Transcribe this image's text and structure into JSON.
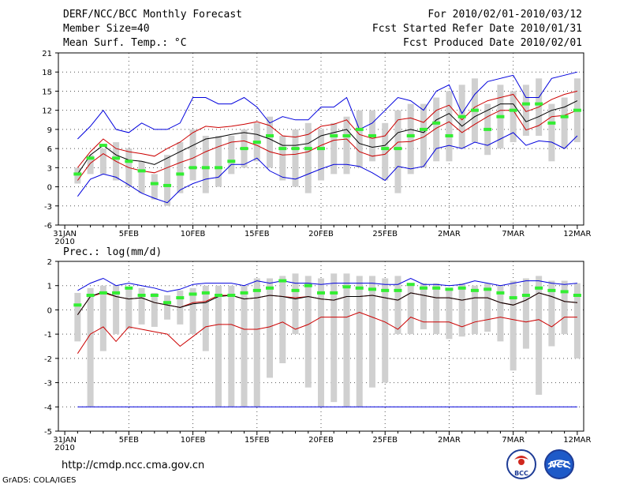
{
  "header": {
    "title": "DERF/NCC/BCC Monthly Forecast",
    "member_size": "Member Size=40",
    "variable": "Mean Surf. Temp.: °C",
    "period": "For 2010/02/01-2010/03/12",
    "started": "Fcst Started Refer Date 2010/01/31",
    "produced": "Fcst Produced Date 2010/02/01"
  },
  "footer": {
    "url": "http://cmdp.ncc.cma.gov.cn",
    "grads": "GrADS: COLA/IGES",
    "logo_bcc": "BCC",
    "logo_ncc": "NCC"
  },
  "colors": {
    "box": "#d0d0d0",
    "median": "#33ee33",
    "upper": "#0000dd",
    "pct": "#cc0000",
    "mean": "#000000",
    "grid": "#555555"
  },
  "chart_data": [
    {
      "type": "box-ensemble",
      "title": "",
      "xlabel": "",
      "ylabel": "Mean Surf. Temp. (°C)",
      "ylim": [
        -6,
        21
      ],
      "yticks": [
        -6,
        -3,
        0,
        3,
        6,
        9,
        12,
        15,
        18,
        21
      ],
      "x_tick_labels": [
        "31JAN",
        "5FEB",
        "10FEB",
        "15FEB",
        "20FEB",
        "25FEB",
        "2MAR",
        "7MAR",
        "12MAR"
      ],
      "x_tick_days": [
        0,
        5,
        10,
        15,
        20,
        25,
        30,
        35,
        40
      ],
      "x_sub_label": "2010",
      "days": [
        1,
        2,
        3,
        4,
        5,
        6,
        7,
        8,
        9,
        10,
        11,
        12,
        13,
        14,
        15,
        16,
        17,
        18,
        19,
        20,
        21,
        22,
        23,
        24,
        25,
        26,
        27,
        28,
        29,
        30,
        31,
        32,
        33,
        34,
        35,
        36,
        37,
        38,
        39,
        40
      ],
      "box_low": [
        0.5,
        2,
        2,
        1,
        0,
        -1,
        -2,
        -3,
        -1,
        1,
        -1,
        0,
        2,
        3,
        4,
        3,
        1,
        0,
        -1,
        1,
        2,
        2,
        3,
        4,
        1,
        -1,
        2,
        3,
        4,
        4,
        6,
        7,
        5,
        6,
        7,
        8,
        8,
        4,
        6,
        7
      ],
      "box_high": [
        3,
        5,
        6,
        7,
        6,
        4,
        2,
        5,
        7,
        9,
        8,
        8,
        8,
        9,
        10,
        11,
        8,
        9,
        10,
        9,
        10,
        11,
        12,
        12,
        10,
        12,
        13,
        13,
        14,
        15,
        16,
        17,
        13,
        16,
        15,
        16,
        17,
        13,
        14,
        17
      ],
      "median": [
        2,
        4.5,
        6.5,
        4.5,
        4,
        2.5,
        0.5,
        0.2,
        2,
        3,
        3,
        3,
        4,
        6,
        7,
        8,
        6,
        6,
        6,
        6,
        8,
        8,
        9,
        8,
        6,
        6,
        8,
        9,
        10,
        8,
        11,
        12,
        9,
        11,
        12,
        13,
        13,
        10,
        11,
        12
      ],
      "upper": [
        7.5,
        9.5,
        12,
        9,
        8.5,
        10,
        9,
        9,
        10,
        14,
        14,
        13,
        13,
        14,
        12.5,
        10,
        11,
        10.5,
        10.5,
        12.5,
        12.5,
        14,
        9,
        10,
        12,
        14,
        13.5,
        12,
        15,
        16,
        11.5,
        14.5,
        16.5,
        17,
        17.5,
        14,
        14,
        17,
        17.5,
        18
      ],
      "lower": [
        -1.5,
        1.2,
        2,
        1.5,
        0.3,
        -1,
        -1.8,
        -2.5,
        -0.5,
        0.5,
        1.2,
        1.5,
        3.5,
        3.5,
        4.5,
        2.5,
        1.5,
        1.2,
        2,
        2.8,
        3.5,
        3.5,
        3.2,
        2.2,
        1,
        3.2,
        2.8,
        3.2,
        6,
        6.5,
        6,
        7,
        6.5,
        7.5,
        8.5,
        6.5,
        7.2,
        7,
        6,
        8
      ],
      "pct_high": [
        3,
        5.5,
        7.5,
        6,
        5.5,
        5.2,
        4.8,
        6,
        7,
        8.5,
        9.5,
        9.3,
        9.5,
        9.8,
        10.2,
        9.6,
        8,
        7.8,
        8.2,
        9.5,
        9.8,
        10.5,
        8.2,
        7.6,
        8,
        10.5,
        10.8,
        10.1,
        12,
        12.8,
        10.5,
        12.5,
        13.5,
        14,
        14.5,
        11.8,
        12.5,
        13.7,
        14.5,
        15
      ],
      "pct_low": [
        1,
        3.7,
        5.2,
        4,
        3,
        2.5,
        2.2,
        3,
        3.8,
        4.5,
        5.5,
        6.3,
        7,
        7.2,
        6.5,
        5.5,
        5,
        5.1,
        5.5,
        6.5,
        7.3,
        7.5,
        5.5,
        4.8,
        5.1,
        7,
        7.1,
        7.8,
        9.2,
        10.2,
        8.5,
        9.8,
        11,
        12,
        12,
        8.9,
        9.6,
        11,
        11.2,
        12
      ],
      "mean": [
        2,
        5,
        6.5,
        5,
        4.2,
        4,
        3.5,
        4.5,
        5.5,
        6.5,
        7.5,
        7.8,
        8.2,
        8.5,
        8.2,
        7.5,
        6.5,
        6.5,
        6.8,
        8,
        8.5,
        9,
        6.8,
        6.2,
        6.5,
        8.5,
        9,
        8.5,
        10.5,
        11.5,
        9.5,
        11,
        12,
        13,
        13,
        10.2,
        11,
        12,
        12.5,
        13.5
      ]
    },
    {
      "type": "box-ensemble",
      "title": "Prec.: log(mm/d)",
      "xlabel": "",
      "ylabel": "Prec.: log(mm/d)",
      "ylim": [
        -5,
        2
      ],
      "yticks": [
        -5,
        -4,
        -3,
        -2,
        -1,
        0,
        1,
        2
      ],
      "x_tick_labels": [
        "31JAN",
        "5FEB",
        "10FEB",
        "15FEB",
        "20FEB",
        "25FEB",
        "2MAR",
        "7MAR",
        "12MAR"
      ],
      "x_tick_days": [
        0,
        5,
        10,
        15,
        20,
        25,
        30,
        35,
        40
      ],
      "x_sub_label": "2010",
      "days": [
        1,
        2,
        3,
        4,
        5,
        6,
        7,
        8,
        9,
        10,
        11,
        12,
        13,
        14,
        15,
        16,
        17,
        18,
        19,
        20,
        21,
        22,
        23,
        24,
        25,
        26,
        27,
        28,
        29,
        30,
        31,
        32,
        33,
        34,
        35,
        36,
        37,
        38,
        39,
        40
      ],
      "box_low": [
        -1.3,
        -4,
        -1.7,
        -1,
        -0.8,
        -0.6,
        -0.7,
        -0.4,
        -0.6,
        -1,
        -1.7,
        -4,
        -4,
        -4,
        -4,
        -2.8,
        -2.2,
        -1,
        -3.2,
        -4,
        -3.8,
        -4,
        -4,
        -3.2,
        -3,
        -1,
        -1,
        -0.8,
        -1,
        -1.2,
        -1.1,
        -1,
        -0.9,
        -1.3,
        -2.5,
        -1.6,
        -3.5,
        -1.5,
        -1,
        -2
      ],
      "box_high": [
        0.7,
        0.9,
        1,
        1,
        0.9,
        0.9,
        0.7,
        0.6,
        0.8,
        0.9,
        1,
        1,
        1,
        1,
        1.3,
        1.3,
        1.4,
        1.5,
        1.4,
        1.3,
        1.5,
        1.5,
        1.4,
        1.4,
        1.3,
        1.4,
        1.1,
        1.1,
        1.1,
        0.9,
        1.1,
        1,
        1.1,
        1,
        1.2,
        1.3,
        1.4,
        1.2,
        1.2,
        1.1
      ],
      "median": [
        0.2,
        0.6,
        0.7,
        0.7,
        0.9,
        0.6,
        0.6,
        0.3,
        0.5,
        0.65,
        0.7,
        0.6,
        0.6,
        0.7,
        0.8,
        0.9,
        1.2,
        0.8,
        1,
        0.7,
        0.7,
        0.95,
        0.9,
        0.85,
        0.8,
        0.8,
        1.05,
        0.9,
        0.9,
        0.85,
        0.9,
        0.8,
        0.85,
        0.7,
        0.5,
        0.6,
        0.9,
        0.8,
        0.75,
        0.6
      ],
      "upper": [
        0.8,
        1.1,
        1.3,
        1,
        1.1,
        1,
        0.9,
        0.75,
        0.85,
        1.05,
        1.1,
        1.1,
        1.1,
        1,
        1.2,
        1.1,
        1.2,
        1.1,
        1.1,
        1.05,
        1.1,
        1.1,
        1.1,
        1.1,
        1.05,
        1.05,
        1.3,
        1.05,
        1.05,
        1,
        1.05,
        1.2,
        1.1,
        1,
        1.1,
        1.2,
        1.2,
        1.1,
        1.05,
        1.1
      ],
      "mean": [
        -0.2,
        0.55,
        0.75,
        0.55,
        0.45,
        0.5,
        0.3,
        0.2,
        0.1,
        0.25,
        0.3,
        0.55,
        0.6,
        0.45,
        0.5,
        0.6,
        0.55,
        0.45,
        0.55,
        0.45,
        0.4,
        0.55,
        0.55,
        0.6,
        0.5,
        0.4,
        0.7,
        0.6,
        0.5,
        0.5,
        0.4,
        0.5,
        0.5,
        0.3,
        0.2,
        0.4,
        0.7,
        0.55,
        0.35,
        0.3
      ],
      "pct_high": [
        -0.2,
        0.55,
        0.7,
        0.55,
        0.45,
        0.5,
        0.3,
        0.2,
        0.1,
        0.3,
        0.35,
        0.6,
        0.6,
        0.45,
        0.5,
        0.6,
        0.55,
        0.5,
        0.55,
        0.45,
        0.4,
        0.55,
        0.55,
        0.6,
        0.5,
        0.4,
        0.7,
        0.6,
        0.5,
        0.5,
        0.4,
        0.5,
        0.5,
        0.3,
        0.2,
        0.4,
        0.7,
        0.55,
        0.35,
        0.3
      ],
      "pct_low": [
        -1.8,
        -1,
        -0.7,
        -1.3,
        -0.7,
        -0.8,
        -0.9,
        -1,
        -1.5,
        -1.1,
        -0.7,
        -0.6,
        -0.6,
        -0.8,
        -0.8,
        -0.7,
        -0.5,
        -0.8,
        -0.6,
        -0.3,
        -0.3,
        -0.3,
        -0.1,
        -0.3,
        -0.5,
        -0.8,
        -0.3,
        -0.5,
        -0.5,
        -0.5,
        -0.7,
        -0.5,
        -0.4,
        -0.3,
        -0.4,
        -0.5,
        -0.4,
        -0.7,
        -0.3,
        -0.3
      ],
      "lower": [
        -4,
        -4,
        -4,
        -4,
        -4,
        -4,
        -4,
        -4,
        -4,
        -4,
        -4,
        -4,
        -4,
        -4,
        -4,
        -4,
        -4,
        -4,
        -4,
        -4,
        -4,
        -4,
        -4,
        -4,
        -4,
        -4,
        -4,
        -4,
        -4,
        -4,
        -4,
        -4,
        -4,
        -4,
        -4,
        -4,
        -4,
        -4,
        -4,
        -4
      ]
    }
  ]
}
